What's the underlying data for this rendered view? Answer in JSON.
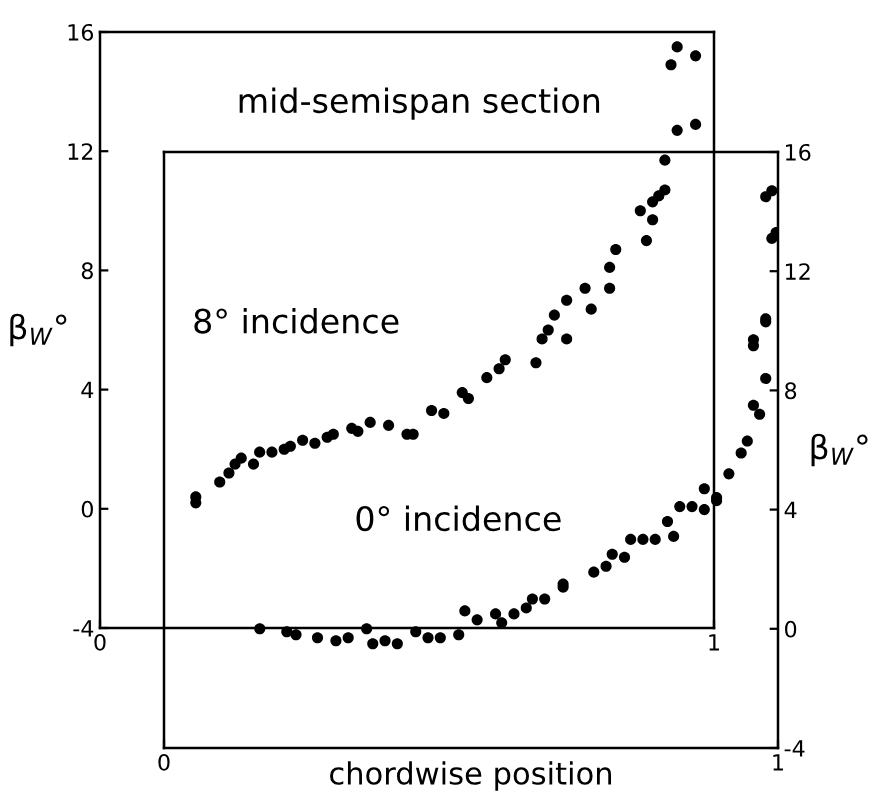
{
  "chart_data": [
    {
      "type": "scatter",
      "title": "mid-semispan section",
      "ylabel": "β$_{W}$°",
      "annotations": [
        "8° incidence"
      ],
      "xlim": [
        0,
        1
      ],
      "xticks": [
        0,
        1
      ],
      "ylim": [
        -4,
        16
      ],
      "yticks": [
        -4,
        0,
        4,
        8,
        12,
        16
      ],
      "marker": "circle",
      "series": [
        {
          "color": "#000000",
          "x": [
            0.156,
            0.156,
            0.195,
            0.21,
            0.22,
            0.23,
            0.25,
            0.26,
            0.28,
            0.3,
            0.31,
            0.33,
            0.35,
            0.37,
            0.38,
            0.41,
            0.42,
            0.44,
            0.47,
            0.5,
            0.51,
            0.54,
            0.56,
            0.59,
            0.6,
            0.63,
            0.65,
            0.66,
            0.71,
            0.72,
            0.73,
            0.76,
            0.74,
            0.76,
            0.8,
            0.79,
            0.83,
            0.83,
            0.84,
            0.89,
            0.9,
            0.88,
            0.9,
            0.91,
            0.92,
            0.92,
            0.94,
            0.97,
            0.93,
            0.94,
            0.97
          ],
          "values": [
            0.2,
            0.4,
            0.9,
            1.2,
            1.5,
            1.7,
            1.5,
            1.9,
            1.9,
            2.0,
            2.1,
            2.3,
            2.2,
            2.4,
            2.5,
            2.7,
            2.6,
            2.9,
            2.8,
            2.5,
            2.5,
            3.3,
            3.2,
            3.9,
            3.7,
            4.4,
            4.7,
            5.0,
            4.9,
            5.7,
            6.0,
            5.7,
            6.5,
            7.0,
            6.7,
            7.4,
            7.4,
            8.1,
            8.7,
            9.0,
            9.7,
            10.0,
            10.3,
            10.5,
            10.7,
            11.7,
            12.7,
            12.9,
            14.9,
            15.5,
            15.2
          ]
        }
      ]
    },
    {
      "type": "scatter",
      "xlabel": "chordwise position",
      "ylabel": "β$_{W}$°",
      "annotations": [
        "0° incidence"
      ],
      "xlim": [
        0,
        1
      ],
      "xticks": [
        0,
        1
      ],
      "ylim": [
        -4,
        16
      ],
      "yticks": [
        -4,
        0,
        4,
        8,
        12,
        16
      ],
      "marker": "circle",
      "series": [
        {
          "color": "#000000",
          "x": [
            0.156,
            0.2,
            0.215,
            0.25,
            0.28,
            0.3,
            0.33,
            0.34,
            0.36,
            0.38,
            0.41,
            0.43,
            0.45,
            0.48,
            0.49,
            0.51,
            0.54,
            0.55,
            0.57,
            0.59,
            0.6,
            0.62,
            0.65,
            0.65,
            0.7,
            0.72,
            0.73,
            0.75,
            0.76,
            0.78,
            0.8,
            0.83,
            0.82,
            0.84,
            0.86,
            0.88,
            0.9,
            0.88,
            0.92,
            0.9,
            0.94,
            0.95,
            0.97,
            0.96,
            0.98,
            0.98,
            0.96,
            0.96,
            0.98,
            0.997,
            0.99,
            0.98,
            0.99
          ],
          "values": [
            0,
            -0.1,
            -0.2,
            -0.3,
            -0.4,
            -0.3,
            0,
            -0.5,
            -0.4,
            -0.5,
            -0.1,
            -0.3,
            -0.3,
            -0.2,
            0.6,
            0.3,
            0.5,
            0.2,
            0.5,
            0.7,
            1.0,
            1.0,
            1.5,
            1.4,
            1.9,
            2.1,
            2.5,
            2.4,
            3.0,
            3.0,
            3.0,
            3.1,
            3.6,
            4.1,
            4.1,
            4.0,
            4.3,
            4.7,
            5.2,
            4.4,
            5.9,
            6.3,
            7.2,
            7.5,
            8.4,
            10.3,
            9.5,
            9.7,
            10.4,
            13.3,
            13.1,
            14.5,
            14.7
          ]
        }
      ]
    }
  ]
}
